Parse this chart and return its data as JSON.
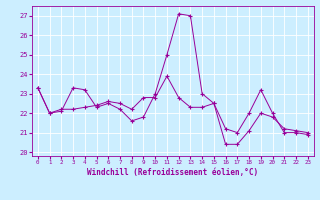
{
  "title": "",
  "xlabel": "Windchill (Refroidissement éolien,°C)",
  "ylabel": "",
  "bg_color": "#cceeff",
  "line_color": "#990099",
  "xlim": [
    -0.5,
    23.5
  ],
  "ylim": [
    19.8,
    27.5
  ],
  "yticks": [
    20,
    21,
    22,
    23,
    24,
    25,
    26,
    27
  ],
  "xticks": [
    0,
    1,
    2,
    3,
    4,
    5,
    6,
    7,
    8,
    9,
    10,
    11,
    12,
    13,
    14,
    15,
    16,
    17,
    18,
    19,
    20,
    21,
    22,
    23
  ],
  "series": [
    [
      23.3,
      22.0,
      22.1,
      23.3,
      23.2,
      22.3,
      22.5,
      22.2,
      21.6,
      21.8,
      23.0,
      25.0,
      27.1,
      27.0,
      23.0,
      22.5,
      21.2,
      21.0,
      22.0,
      23.2,
      22.0,
      21.0,
      21.0,
      20.9
    ],
    [
      23.3,
      22.0,
      22.2,
      22.2,
      22.3,
      22.4,
      22.6,
      22.5,
      22.2,
      22.8,
      22.8,
      23.9,
      22.8,
      22.3,
      22.3,
      22.5,
      20.4,
      20.4,
      21.1,
      22.0,
      21.8,
      21.2,
      21.1,
      21.0
    ]
  ]
}
